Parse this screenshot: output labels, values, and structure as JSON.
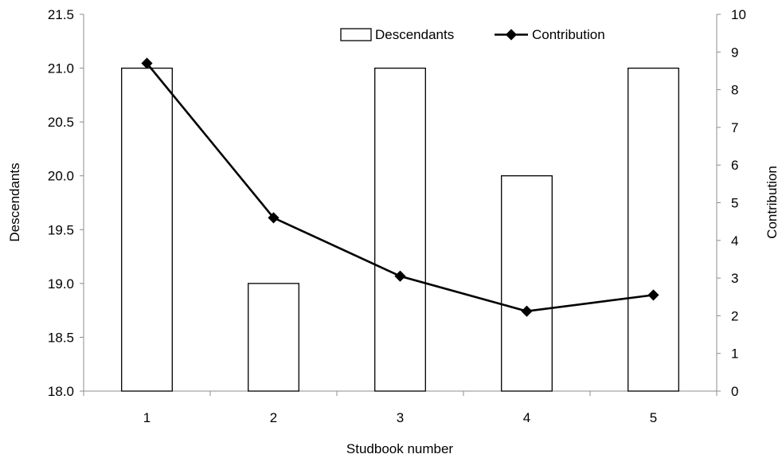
{
  "chart_data": {
    "type": "bar",
    "categories": [
      "1",
      "2",
      "3",
      "4",
      "5"
    ],
    "series": [
      {
        "name": "Descendants",
        "type": "bar",
        "axis": "left",
        "values": [
          21.0,
          19.0,
          21.0,
          20.0,
          21.0
        ]
      },
      {
        "name": "Contribution",
        "type": "line",
        "axis": "right",
        "values": [
          8.7,
          4.6,
          3.05,
          2.12,
          2.55
        ]
      }
    ],
    "xlabel": "Studbook number",
    "ylabel": "Descendants",
    "y2label": "Contribution",
    "ylim": [
      18.0,
      21.5
    ],
    "y2lim": [
      0,
      10
    ],
    "yticks": [
      "18.0",
      "18.5",
      "19.0",
      "19.5",
      "20.0",
      "20.5",
      "21.0",
      "21.5"
    ],
    "y2ticks": [
      "0",
      "1",
      "2",
      "3",
      "4",
      "5",
      "6",
      "7",
      "8",
      "9",
      "10"
    ],
    "grid": false,
    "legend_position": "top"
  }
}
